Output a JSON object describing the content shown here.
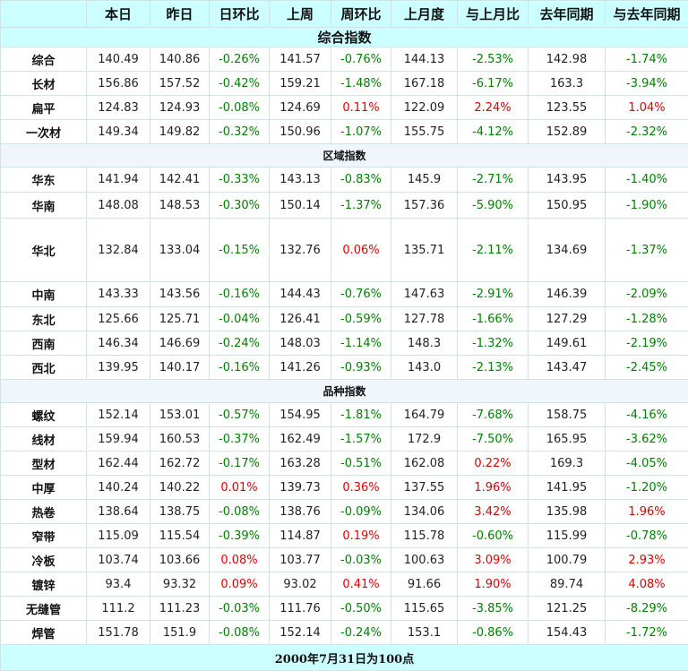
{
  "header": {
    "corner": "",
    "columns": [
      "本日",
      "昨日",
      "日环比",
      "上周",
      "周环比",
      "上月度",
      "与上月比",
      "去年同期",
      "与去年同期"
    ]
  },
  "title": "综合指数",
  "sections": [
    {
      "label": "",
      "rows": [
        {
          "name": "综合",
          "cells": [
            "140.49",
            "140.86",
            "-0.26%",
            "141.57",
            "-0.76%",
            "144.13",
            "-2.53%",
            "142.98",
            "-1.74%"
          ]
        },
        {
          "name": "长材",
          "cells": [
            "156.86",
            "157.52",
            "-0.42%",
            "159.21",
            "-1.48%",
            "167.18",
            "-6.17%",
            "163.3",
            "-3.94%"
          ]
        },
        {
          "name": "扁平",
          "cells": [
            "124.83",
            "124.93",
            "-0.08%",
            "124.69",
            "0.11%",
            "122.09",
            "2.24%",
            "123.55",
            "1.04%"
          ]
        },
        {
          "name": "一次材",
          "cells": [
            "149.34",
            "149.82",
            "-0.32%",
            "150.96",
            "-1.07%",
            "155.75",
            "-4.12%",
            "152.89",
            "-2.32%"
          ]
        }
      ]
    },
    {
      "label": "区域指数",
      "rows": [
        {
          "name": "华东",
          "cells": [
            "141.94",
            "142.41",
            "-0.33%",
            "143.13",
            "-0.83%",
            "145.9",
            "-2.71%",
            "143.95",
            "-1.40%"
          ]
        },
        {
          "name": "华南",
          "cells": [
            "148.08",
            "148.53",
            "-0.30%",
            "150.14",
            "-1.37%",
            "157.36",
            "-5.90%",
            "150.95",
            "-1.90%"
          ]
        },
        {
          "name": "华北",
          "cells": [
            "132.84",
            "133.04",
            "-0.15%",
            "132.76",
            "0.06%",
            "135.71",
            "-2.11%",
            "134.69",
            "-1.37%"
          ]
        },
        {
          "name": "中南",
          "cells": [
            "143.33",
            "143.56",
            "-0.16%",
            "144.43",
            "-0.76%",
            "147.63",
            "-2.91%",
            "146.39",
            "-2.09%"
          ]
        },
        {
          "name": "东北",
          "cells": [
            "125.66",
            "125.71",
            "-0.04%",
            "126.41",
            "-0.59%",
            "127.78",
            "-1.66%",
            "127.29",
            "-1.28%"
          ]
        },
        {
          "name": "西南",
          "cells": [
            "146.34",
            "146.69",
            "-0.24%",
            "148.03",
            "-1.14%",
            "148.3",
            "-1.32%",
            "149.61",
            "-2.19%"
          ]
        },
        {
          "name": "西北",
          "cells": [
            "139.95",
            "140.17",
            "-0.16%",
            "141.26",
            "-0.93%",
            "143.0",
            "-2.13%",
            "143.47",
            "-2.45%"
          ]
        }
      ]
    },
    {
      "label": "品种指数",
      "rows": [
        {
          "name": "螺纹",
          "cells": [
            "152.14",
            "153.01",
            "-0.57%",
            "154.95",
            "-1.81%",
            "164.79",
            "-7.68%",
            "158.75",
            "-4.16%"
          ]
        },
        {
          "name": "线材",
          "cells": [
            "159.94",
            "160.53",
            "-0.37%",
            "162.49",
            "-1.57%",
            "172.9",
            "-7.50%",
            "165.95",
            "-3.62%"
          ]
        },
        {
          "name": "型材",
          "cells": [
            "162.44",
            "162.72",
            "-0.17%",
            "163.28",
            "-0.51%",
            "162.08",
            "0.22%",
            "169.3",
            "-4.05%"
          ]
        },
        {
          "name": "中厚",
          "cells": [
            "140.24",
            "140.22",
            "0.01%",
            "139.73",
            "0.36%",
            "137.55",
            "1.96%",
            "141.95",
            "-1.20%"
          ]
        },
        {
          "name": "热卷",
          "cells": [
            "138.64",
            "138.75",
            "-0.08%",
            "138.76",
            "-0.09%",
            "134.06",
            "3.42%",
            "135.98",
            "1.96%"
          ]
        },
        {
          "name": "窄带",
          "cells": [
            "115.09",
            "115.54",
            "-0.39%",
            "114.87",
            "0.19%",
            "115.78",
            "-0.60%",
            "115.99",
            "-0.78%"
          ]
        },
        {
          "name": "冷板",
          "cells": [
            "103.74",
            "103.66",
            "0.08%",
            "103.77",
            "-0.03%",
            "100.63",
            "3.09%",
            "100.79",
            "2.93%"
          ]
        },
        {
          "name": "镀锌",
          "cells": [
            "93.4",
            "93.32",
            "0.09%",
            "93.02",
            "0.41%",
            "91.66",
            "1.90%",
            "89.74",
            "4.08%"
          ]
        },
        {
          "name": "无缝管",
          "cells": [
            "111.2",
            "111.23",
            "-0.03%",
            "111.76",
            "-0.50%",
            "115.65",
            "-3.85%",
            "121.25",
            "-8.29%"
          ]
        },
        {
          "name": "焊管",
          "cells": [
            "151.78",
            "151.9",
            "-0.08%",
            "152.14",
            "-0.24%",
            "153.1",
            "-0.86%",
            "154.43",
            "-1.72%"
          ]
        }
      ]
    }
  ],
  "footer": "2000年7月31日为100点",
  "colors": {
    "positive": "#e00000",
    "negative": "#008000",
    "header_bg": "#ccffff",
    "section_bg": "#f0f7fc"
  }
}
